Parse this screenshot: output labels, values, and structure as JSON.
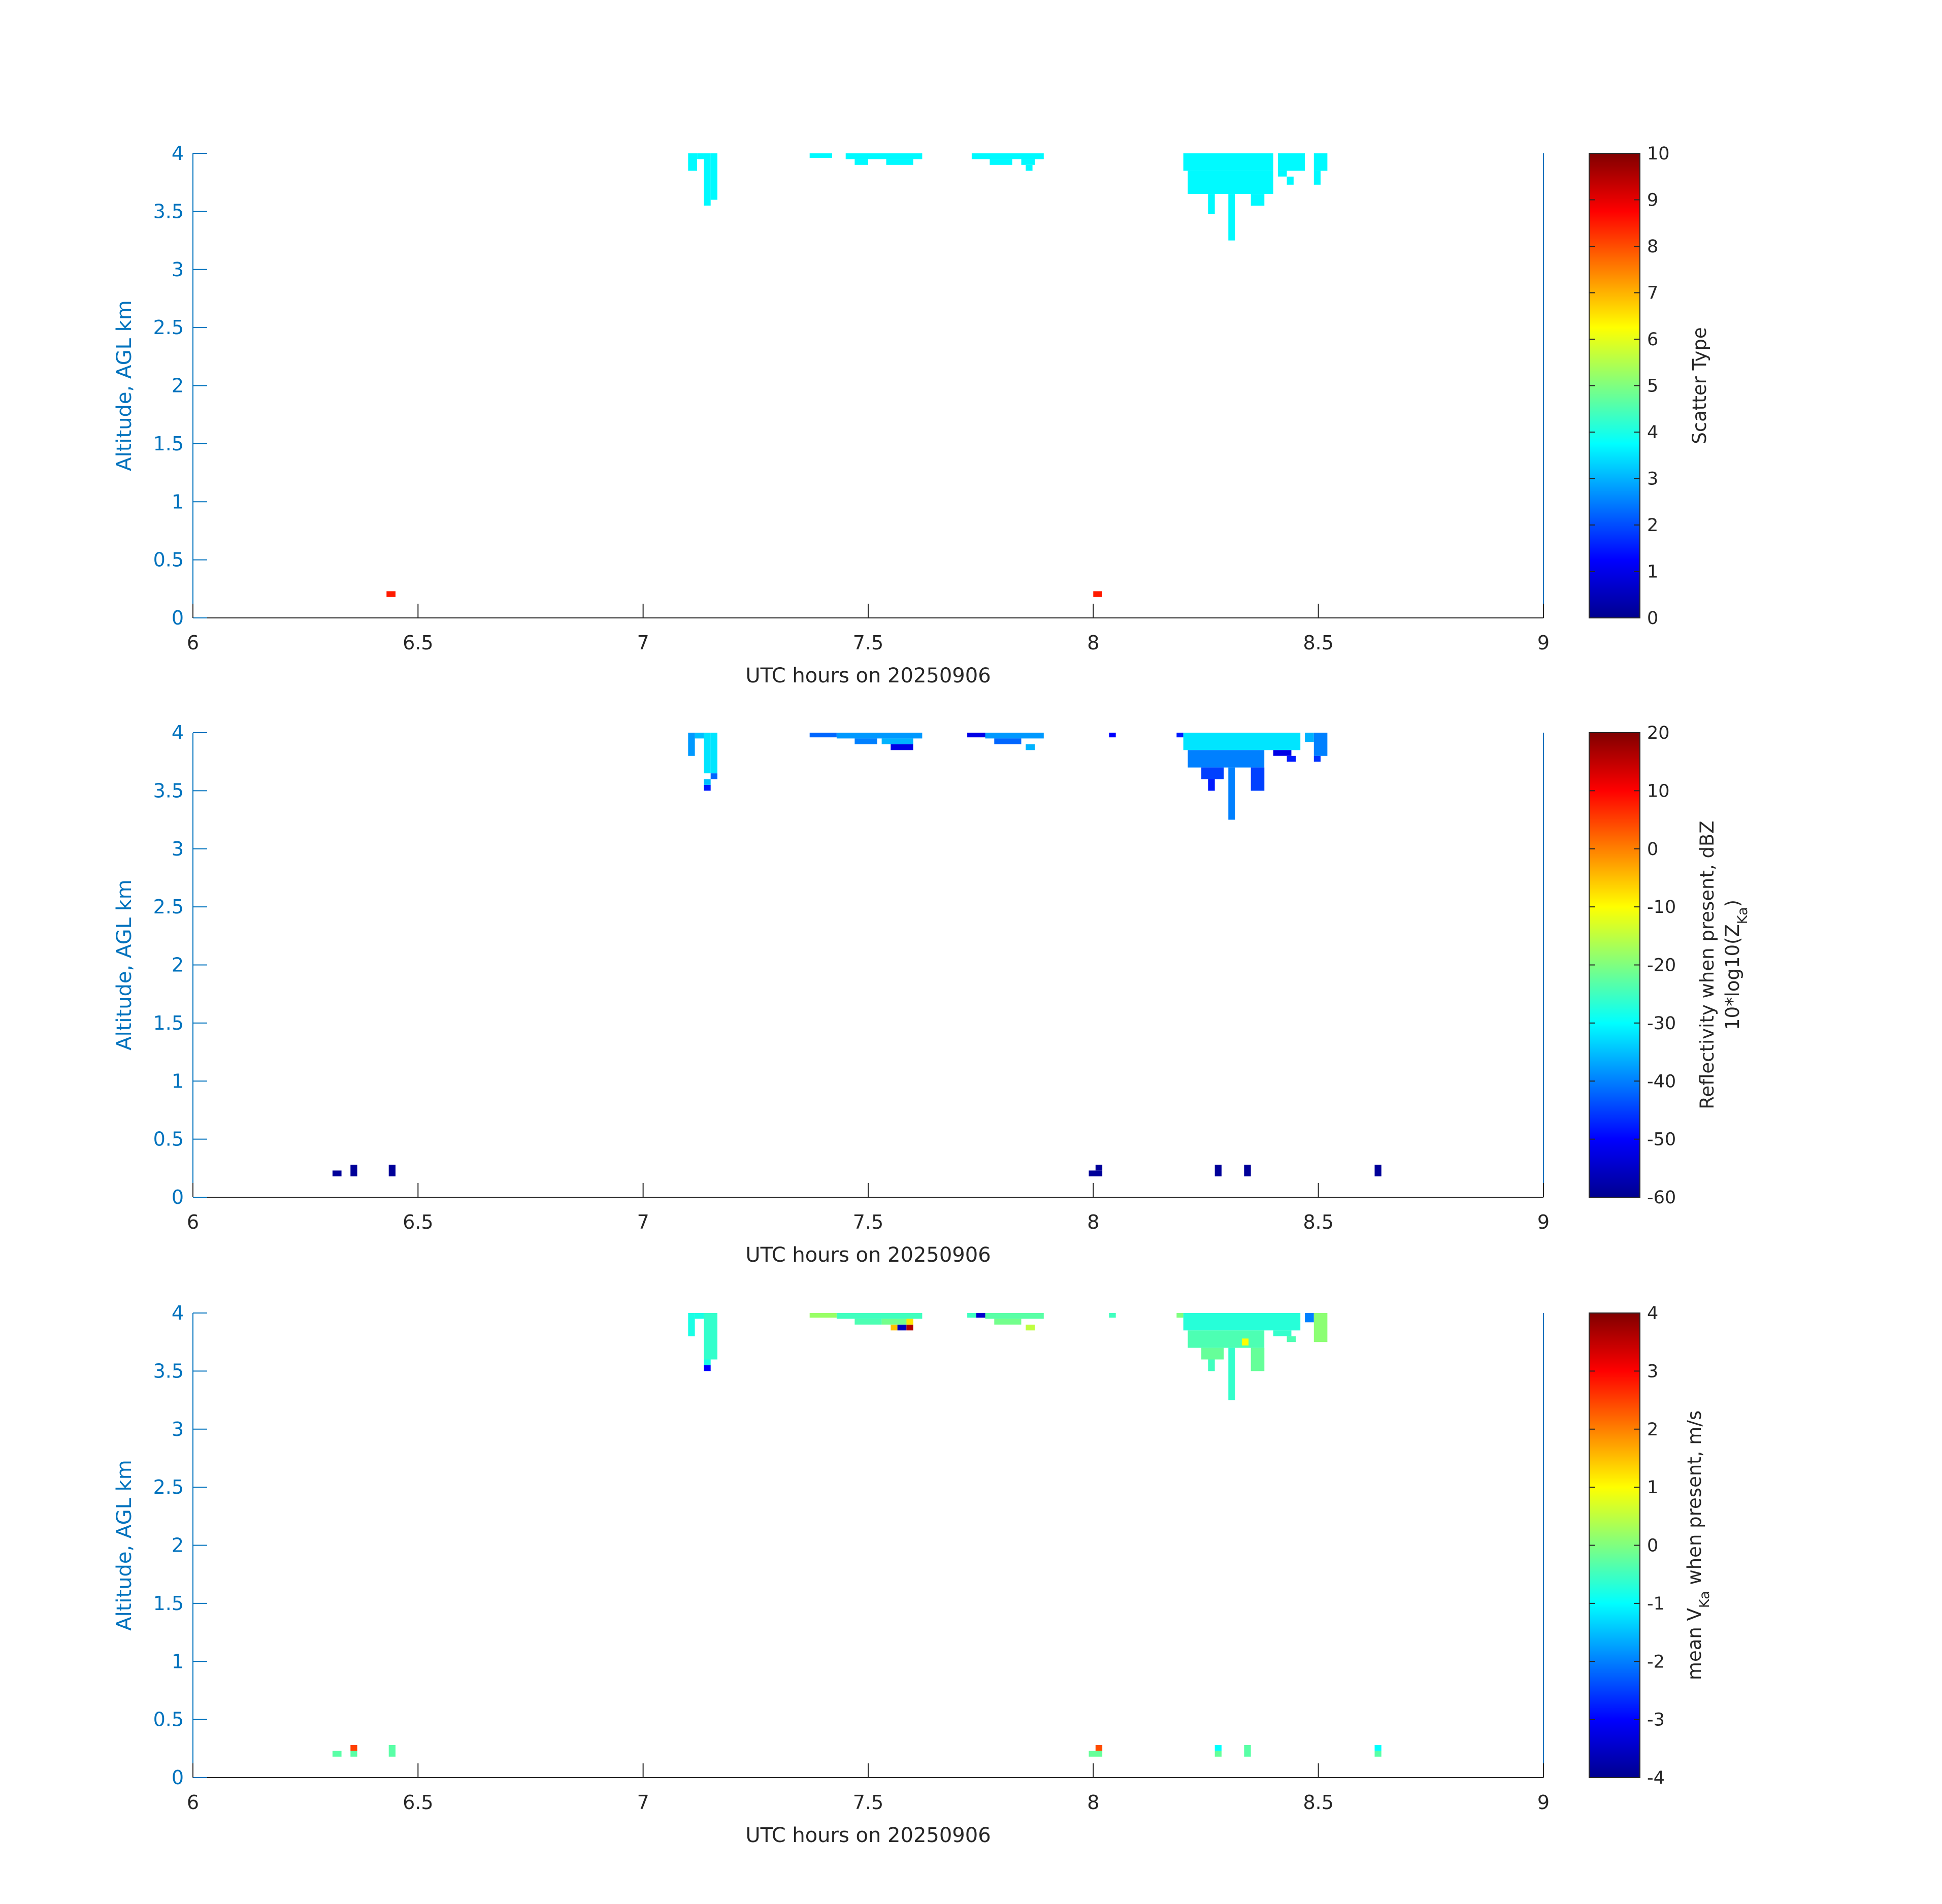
{
  "chart_data": [
    {
      "type": "heatmap",
      "xlabel": "UTC hours on 20250906",
      "ylabel": "Altitude, AGL km",
      "xlim": [
        6,
        9
      ],
      "ylim": [
        0,
        4
      ],
      "x_ticks": [
        "6",
        "6.5",
        "7",
        "7.5",
        "8",
        "8.5",
        "9"
      ],
      "y_ticks": [
        "0",
        "0.5",
        "1",
        "1.5",
        "2",
        "2.5",
        "3",
        "3.5",
        "4"
      ],
      "colorbar": {
        "label": "Scatter Type",
        "label_sub": "",
        "range": [
          0,
          10
        ],
        "ticks": [
          "0",
          "1",
          "2",
          "3",
          "4",
          "5",
          "6",
          "7",
          "8",
          "9",
          "10"
        ],
        "colormap": "jet"
      },
      "cells": [
        {
          "t0": 6.43,
          "t1": 6.45,
          "z0": 0.18,
          "z1": 0.23,
          "v": 8.5
        },
        {
          "t0": 8.0,
          "t1": 8.02,
          "z0": 0.18,
          "z1": 0.23,
          "v": 8.5
        },
        {
          "t0": 7.1,
          "t1": 7.12,
          "z0": 3.85,
          "z1": 4.0,
          "v": 3.7
        },
        {
          "t0": 7.12,
          "t1": 7.135,
          "z0": 3.95,
          "z1": 4.0,
          "v": 3.7
        },
        {
          "t0": 7.135,
          "t1": 7.15,
          "z0": 3.55,
          "z1": 4.0,
          "v": 3.7
        },
        {
          "t0": 7.15,
          "t1": 7.165,
          "z0": 3.6,
          "z1": 4.0,
          "v": 3.7
        },
        {
          "t0": 7.37,
          "t1": 7.42,
          "z0": 3.96,
          "z1": 4.0,
          "v": 3.7
        },
        {
          "t0": 7.45,
          "t1": 7.62,
          "z0": 3.95,
          "z1": 4.0,
          "v": 3.7
        },
        {
          "t0": 7.47,
          "t1": 7.5,
          "z0": 3.9,
          "z1": 3.95,
          "v": 3.7
        },
        {
          "t0": 7.54,
          "t1": 7.6,
          "z0": 3.9,
          "z1": 3.95,
          "v": 3.7
        },
        {
          "t0": 7.73,
          "t1": 7.89,
          "z0": 3.95,
          "z1": 4.0,
          "v": 3.7
        },
        {
          "t0": 7.77,
          "t1": 7.82,
          "z0": 3.9,
          "z1": 3.95,
          "v": 3.7
        },
        {
          "t0": 7.84,
          "t1": 7.87,
          "z0": 3.9,
          "z1": 3.95,
          "v": 3.7
        },
        {
          "t0": 7.85,
          "t1": 7.865,
          "z0": 3.85,
          "z1": 3.9,
          "v": 3.7
        },
        {
          "t0": 8.2,
          "t1": 8.4,
          "z0": 3.85,
          "z1": 4.0,
          "v": 3.7
        },
        {
          "t0": 8.21,
          "t1": 8.4,
          "z0": 3.65,
          "z1": 3.85,
          "v": 3.7
        },
        {
          "t0": 8.255,
          "t1": 8.27,
          "z0": 3.48,
          "z1": 3.65,
          "v": 3.7
        },
        {
          "t0": 8.3,
          "t1": 8.315,
          "z0": 3.25,
          "z1": 3.65,
          "v": 3.7
        },
        {
          "t0": 8.35,
          "t1": 8.38,
          "z0": 3.55,
          "z1": 3.65,
          "v": 3.7
        },
        {
          "t0": 8.41,
          "t1": 8.47,
          "z0": 3.85,
          "z1": 4.0,
          "v": 3.7
        },
        {
          "t0": 8.41,
          "t1": 8.43,
          "z0": 3.8,
          "z1": 3.85,
          "v": 3.7
        },
        {
          "t0": 8.43,
          "t1": 8.445,
          "z0": 3.73,
          "z1": 3.8,
          "v": 3.7
        },
        {
          "t0": 8.49,
          "t1": 8.52,
          "z0": 3.85,
          "z1": 4.0,
          "v": 3.7
        },
        {
          "t0": 8.49,
          "t1": 8.505,
          "z0": 3.73,
          "z1": 3.85,
          "v": 3.7
        }
      ]
    },
    {
      "type": "heatmap",
      "xlabel": "UTC hours on 20250906",
      "ylabel": "Altitude, AGL km",
      "xlim": [
        6,
        9
      ],
      "ylim": [
        0,
        4
      ],
      "x_ticks": [
        "6",
        "6.5",
        "7",
        "7.5",
        "8",
        "8.5",
        "9"
      ],
      "y_ticks": [
        "0",
        "0.5",
        "1",
        "1.5",
        "2",
        "2.5",
        "3",
        "3.5",
        "4"
      ],
      "colorbar": {
        "label": "Reflectivity when present, dBZ",
        "label_sub": "10*log10(Z",
        "label_sub_subscript": "Ka",
        "label_sub_end": ")",
        "range": [
          -60,
          20
        ],
        "ticks": [
          "-60",
          "-50",
          "-40",
          "-30",
          "-20",
          "-10",
          "0",
          "10",
          "20"
        ],
        "colormap": "jet"
      },
      "cells": [
        {
          "t0": 6.31,
          "t1": 6.33,
          "z0": 0.18,
          "z1": 0.23,
          "v": -58
        },
        {
          "t0": 6.35,
          "t1": 6.365,
          "z0": 0.18,
          "z1": 0.28,
          "v": -58
        },
        {
          "t0": 6.435,
          "t1": 6.45,
          "z0": 0.18,
          "z1": 0.28,
          "v": -58
        },
        {
          "t0": 7.99,
          "t1": 8.02,
          "z0": 0.18,
          "z1": 0.23,
          "v": -58
        },
        {
          "t0": 8.005,
          "t1": 8.02,
          "z0": 0.23,
          "z1": 0.28,
          "v": -58
        },
        {
          "t0": 8.27,
          "t1": 8.285,
          "z0": 0.18,
          "z1": 0.28,
          "v": -58
        },
        {
          "t0": 8.335,
          "t1": 8.35,
          "z0": 0.18,
          "z1": 0.28,
          "v": -58
        },
        {
          "t0": 8.625,
          "t1": 8.64,
          "z0": 0.18,
          "z1": 0.28,
          "v": -58
        },
        {
          "t0": 7.1,
          "t1": 7.115,
          "z0": 3.8,
          "z1": 4.0,
          "v": -38
        },
        {
          "t0": 7.115,
          "t1": 7.135,
          "z0": 3.95,
          "z1": 4.0,
          "v": -35
        },
        {
          "t0": 7.135,
          "t1": 7.15,
          "z0": 3.65,
          "z1": 4.0,
          "v": -32
        },
        {
          "t0": 7.135,
          "t1": 7.15,
          "z0": 3.5,
          "z1": 3.55,
          "v": -48
        },
        {
          "t0": 7.135,
          "t1": 7.15,
          "z0": 3.55,
          "z1": 3.6,
          "v": -35
        },
        {
          "t0": 7.15,
          "t1": 7.165,
          "z0": 3.6,
          "z1": 3.65,
          "v": -42
        },
        {
          "t0": 7.15,
          "t1": 7.165,
          "z0": 3.65,
          "z1": 4.0,
          "v": -32
        },
        {
          "t0": 7.37,
          "t1": 7.43,
          "z0": 3.96,
          "z1": 4.0,
          "v": -42
        },
        {
          "t0": 7.43,
          "t1": 7.62,
          "z0": 3.95,
          "z1": 4.0,
          "v": -38
        },
        {
          "t0": 7.47,
          "t1": 7.52,
          "z0": 3.9,
          "z1": 3.95,
          "v": -40
        },
        {
          "t0": 7.55,
          "t1": 7.6,
          "z0": 3.85,
          "z1": 3.9,
          "v": -52
        },
        {
          "t0": 7.53,
          "t1": 7.6,
          "z0": 3.9,
          "z1": 3.95,
          "v": -36
        },
        {
          "t0": 7.72,
          "t1": 7.76,
          "z0": 3.96,
          "z1": 4.0,
          "v": -52
        },
        {
          "t0": 7.76,
          "t1": 7.89,
          "z0": 3.95,
          "z1": 4.0,
          "v": -38
        },
        {
          "t0": 7.78,
          "t1": 7.84,
          "z0": 3.9,
          "z1": 3.95,
          "v": -42
        },
        {
          "t0": 7.85,
          "t1": 7.87,
          "z0": 3.85,
          "z1": 3.9,
          "v": -36
        },
        {
          "t0": 8.035,
          "t1": 8.05,
          "z0": 3.96,
          "z1": 4.0,
          "v": -50
        },
        {
          "t0": 8.185,
          "t1": 8.2,
          "z0": 3.96,
          "z1": 4.0,
          "v": -48
        },
        {
          "t0": 8.2,
          "t1": 8.46,
          "z0": 3.85,
          "z1": 4.0,
          "v": -32
        },
        {
          "t0": 8.21,
          "t1": 8.38,
          "z0": 3.7,
          "z1": 3.85,
          "v": -40
        },
        {
          "t0": 8.24,
          "t1": 8.29,
          "z0": 3.6,
          "z1": 3.7,
          "v": -45
        },
        {
          "t0": 8.255,
          "t1": 8.27,
          "z0": 3.5,
          "z1": 3.6,
          "v": -48
        },
        {
          "t0": 8.3,
          "t1": 8.315,
          "z0": 3.25,
          "z1": 3.7,
          "v": -40
        },
        {
          "t0": 8.35,
          "t1": 8.38,
          "z0": 3.5,
          "z1": 3.7,
          "v": -45
        },
        {
          "t0": 8.4,
          "t1": 8.44,
          "z0": 3.8,
          "z1": 3.85,
          "v": -52
        },
        {
          "t0": 8.43,
          "t1": 8.45,
          "z0": 3.75,
          "z1": 3.8,
          "v": -48
        },
        {
          "t0": 8.47,
          "t1": 8.49,
          "z0": 3.92,
          "z1": 4.0,
          "v": -36
        },
        {
          "t0": 8.49,
          "t1": 8.52,
          "z0": 3.8,
          "z1": 4.0,
          "v": -40
        },
        {
          "t0": 8.49,
          "t1": 8.505,
          "z0": 3.75,
          "z1": 3.8,
          "v": -46
        }
      ]
    },
    {
      "type": "heatmap",
      "xlabel": "UTC hours on 20250906",
      "ylabel": "Altitude, AGL km",
      "xlim": [
        6,
        9
      ],
      "ylim": [
        0,
        4
      ],
      "x_ticks": [
        "6",
        "6.5",
        "7",
        "7.5",
        "8",
        "8.5",
        "9"
      ],
      "y_ticks": [
        "0",
        "0.5",
        "1",
        "1.5",
        "2",
        "2.5",
        "3",
        "3.5",
        "4"
      ],
      "colorbar": {
        "label": "mean V",
        "label_subscript": "Ka",
        "label_end": " when present, m/s",
        "range": [
          -4,
          4
        ],
        "ticks": [
          "-4",
          "-3",
          "-2",
          "-1",
          "0",
          "1",
          "2",
          "3",
          "4"
        ],
        "colormap": "jet"
      },
      "cells": [
        {
          "t0": 6.31,
          "t1": 6.33,
          "z0": 0.18,
          "z1": 0.23,
          "v": -0.3
        },
        {
          "t0": 6.35,
          "t1": 6.365,
          "z0": 0.18,
          "z1": 0.23,
          "v": -0.3
        },
        {
          "t0": 6.35,
          "t1": 6.365,
          "z0": 0.23,
          "z1": 0.28,
          "v": 2.5
        },
        {
          "t0": 6.435,
          "t1": 6.45,
          "z0": 0.18,
          "z1": 0.28,
          "v": -0.3
        },
        {
          "t0": 7.99,
          "t1": 8.02,
          "z0": 0.18,
          "z1": 0.23,
          "v": -0.2
        },
        {
          "t0": 8.005,
          "t1": 8.02,
          "z0": 0.23,
          "z1": 0.28,
          "v": 2.4
        },
        {
          "t0": 8.27,
          "t1": 8.285,
          "z0": 0.18,
          "z1": 0.23,
          "v": -0.2
        },
        {
          "t0": 8.27,
          "t1": 8.285,
          "z0": 0.23,
          "z1": 0.28,
          "v": -1.0
        },
        {
          "t0": 8.335,
          "t1": 8.35,
          "z0": 0.18,
          "z1": 0.28,
          "v": -0.3
        },
        {
          "t0": 8.625,
          "t1": 8.64,
          "z0": 0.18,
          "z1": 0.23,
          "v": -0.3
        },
        {
          "t0": 8.625,
          "t1": 8.64,
          "z0": 0.23,
          "z1": 0.28,
          "v": -1.0
        },
        {
          "t0": 7.1,
          "t1": 7.115,
          "z0": 3.8,
          "z1": 4.0,
          "v": -0.8
        },
        {
          "t0": 7.115,
          "t1": 7.135,
          "z0": 3.95,
          "z1": 4.0,
          "v": -0.8
        },
        {
          "t0": 7.135,
          "t1": 7.165,
          "z0": 3.6,
          "z1": 4.0,
          "v": -0.6
        },
        {
          "t0": 7.135,
          "t1": 7.15,
          "z0": 3.5,
          "z1": 3.55,
          "v": -3.0
        },
        {
          "t0": 7.135,
          "t1": 7.15,
          "z0": 3.55,
          "z1": 3.6,
          "v": -0.8
        },
        {
          "t0": 7.37,
          "t1": 7.43,
          "z0": 3.96,
          "z1": 4.0,
          "v": 0.2
        },
        {
          "t0": 7.43,
          "t1": 7.62,
          "z0": 3.95,
          "z1": 4.0,
          "v": -0.5
        },
        {
          "t0": 7.47,
          "t1": 7.53,
          "z0": 3.9,
          "z1": 3.95,
          "v": -0.4
        },
        {
          "t0": 7.53,
          "t1": 7.6,
          "z0": 3.9,
          "z1": 3.95,
          "v": -0.1
        },
        {
          "t0": 7.55,
          "t1": 7.565,
          "z0": 3.85,
          "z1": 3.9,
          "v": 1.5
        },
        {
          "t0": 7.565,
          "t1": 7.585,
          "z0": 3.85,
          "z1": 3.9,
          "v": -3.5
        },
        {
          "t0": 7.585,
          "t1": 7.6,
          "z0": 3.85,
          "z1": 3.9,
          "v": 3.6
        },
        {
          "t0": 7.585,
          "t1": 7.6,
          "z0": 3.9,
          "z1": 3.95,
          "v": 1.2
        },
        {
          "t0": 7.72,
          "t1": 7.74,
          "z0": 3.96,
          "z1": 4.0,
          "v": -0.5
        },
        {
          "t0": 7.74,
          "t1": 7.76,
          "z0": 3.96,
          "z1": 4.0,
          "v": -3.4
        },
        {
          "t0": 7.76,
          "t1": 7.89,
          "z0": 3.95,
          "z1": 4.0,
          "v": -0.3
        },
        {
          "t0": 7.78,
          "t1": 7.84,
          "z0": 3.9,
          "z1": 3.95,
          "v": -0.1
        },
        {
          "t0": 7.85,
          "t1": 7.87,
          "z0": 3.85,
          "z1": 3.9,
          "v": 0.5
        },
        {
          "t0": 8.035,
          "t1": 8.05,
          "z0": 3.96,
          "z1": 4.0,
          "v": -0.5
        },
        {
          "t0": 8.185,
          "t1": 8.2,
          "z0": 3.96,
          "z1": 4.0,
          "v": 0.0
        },
        {
          "t0": 8.2,
          "t1": 8.46,
          "z0": 3.85,
          "z1": 4.0,
          "v": -0.7
        },
        {
          "t0": 8.21,
          "t1": 8.38,
          "z0": 3.7,
          "z1": 3.85,
          "v": -0.4
        },
        {
          "t0": 8.24,
          "t1": 8.29,
          "z0": 3.6,
          "z1": 3.7,
          "v": -0.2
        },
        {
          "t0": 8.255,
          "t1": 8.27,
          "z0": 3.5,
          "z1": 3.6,
          "v": -0.5
        },
        {
          "t0": 8.3,
          "t1": 8.315,
          "z0": 3.25,
          "z1": 3.7,
          "v": -0.6
        },
        {
          "t0": 8.33,
          "t1": 8.345,
          "z0": 3.72,
          "z1": 3.78,
          "v": 1.0
        },
        {
          "t0": 8.35,
          "t1": 8.38,
          "z0": 3.5,
          "z1": 3.7,
          "v": -0.2
        },
        {
          "t0": 8.4,
          "t1": 8.44,
          "z0": 3.8,
          "z1": 3.85,
          "v": -0.6
        },
        {
          "t0": 8.43,
          "t1": 8.45,
          "z0": 3.75,
          "z1": 3.8,
          "v": -0.4
        },
        {
          "t0": 8.47,
          "t1": 8.49,
          "z0": 3.92,
          "z1": 4.0,
          "v": -2.0
        },
        {
          "t0": 8.49,
          "t1": 8.52,
          "z0": 3.75,
          "z1": 4.0,
          "v": 0.1
        }
      ]
    }
  ]
}
